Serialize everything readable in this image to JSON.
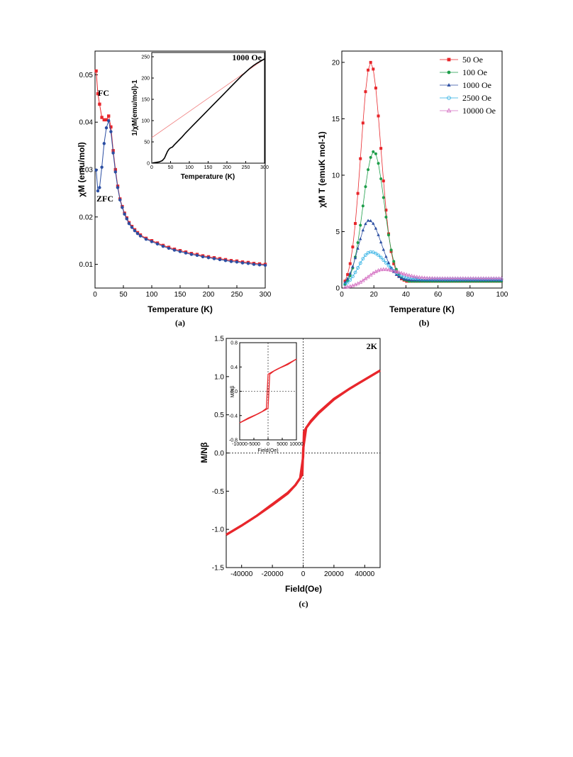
{
  "chart_data": [
    {
      "id": "a",
      "type": "line",
      "panel_label": "(a)",
      "xlabel": "Temperature (K)",
      "ylabel": "χM (emu/mol)",
      "xlim": [
        0,
        300
      ],
      "ylim": [
        0.005,
        0.055
      ],
      "xticks": [
        0,
        50,
        100,
        150,
        200,
        250,
        300
      ],
      "yticks": [
        0.01,
        0.02,
        0.03,
        0.04,
        0.05
      ],
      "ytick_labels": [
        "0.01",
        "0.02",
        "0.03",
        "0.04",
        "0.05"
      ],
      "annotations": [
        "FC",
        "ZFC"
      ],
      "series": [
        {
          "name": "FC",
          "color": "#e8262b",
          "marker": "square",
          "points": [
            [
              2,
              0.0508
            ],
            [
              5,
              0.046
            ],
            [
              8,
              0.0438
            ],
            [
              12,
              0.041
            ],
            [
              16,
              0.0405
            ],
            [
              20,
              0.0405
            ],
            [
              24,
              0.0413
            ],
            [
              28,
              0.039
            ],
            [
              32,
              0.034
            ],
            [
              36,
              0.03
            ],
            [
              40,
              0.0265
            ],
            [
              44,
              0.0238
            ],
            [
              48,
              0.0222
            ],
            [
              52,
              0.0208
            ],
            [
              56,
              0.0198
            ],
            [
              60,
              0.0188
            ],
            [
              65,
              0.018
            ],
            [
              70,
              0.0173
            ],
            [
              75,
              0.0167
            ],
            [
              80,
              0.0162
            ],
            [
              90,
              0.0155
            ],
            [
              100,
              0.015
            ],
            [
              110,
              0.0145
            ],
            [
              120,
              0.014
            ],
            [
              130,
              0.0136
            ],
            [
              140,
              0.0132
            ],
            [
              150,
              0.0129
            ],
            [
              160,
              0.0126
            ],
            [
              170,
              0.0123
            ],
            [
              180,
              0.0121
            ],
            [
              190,
              0.0118
            ],
            [
              200,
              0.0116
            ],
            [
              210,
              0.0114
            ],
            [
              220,
              0.0112
            ],
            [
              230,
              0.011
            ],
            [
              240,
              0.0108
            ],
            [
              250,
              0.0107
            ],
            [
              260,
              0.0105
            ],
            [
              270,
              0.0104
            ],
            [
              280,
              0.0102
            ],
            [
              290,
              0.0101
            ],
            [
              300,
              0.01
            ]
          ]
        },
        {
          "name": "ZFC",
          "color": "#2b4ea2",
          "marker": "circle",
          "points": [
            [
              2,
              0.0299
            ],
            [
              5,
              0.0255
            ],
            [
              8,
              0.0262
            ],
            [
              12,
              0.0305
            ],
            [
              16,
              0.0355
            ],
            [
              20,
              0.0388
            ],
            [
              24,
              0.0403
            ],
            [
              28,
              0.038
            ],
            [
              32,
              0.0335
            ],
            [
              36,
              0.0295
            ],
            [
              40,
              0.0262
            ],
            [
              44,
              0.0236
            ],
            [
              48,
              0.022
            ],
            [
              52,
              0.0206
            ],
            [
              56,
              0.0196
            ],
            [
              60,
              0.0186
            ],
            [
              65,
              0.0178
            ],
            [
              70,
              0.0171
            ],
            [
              75,
              0.0165
            ],
            [
              80,
              0.016
            ],
            [
              90,
              0.0153
            ],
            [
              100,
              0.0148
            ],
            [
              110,
              0.0143
            ],
            [
              120,
              0.0138
            ],
            [
              130,
              0.0134
            ],
            [
              140,
              0.013
            ],
            [
              150,
              0.0127
            ],
            [
              160,
              0.0124
            ],
            [
              170,
              0.0121
            ],
            [
              180,
              0.0119
            ],
            [
              190,
              0.0116
            ],
            [
              200,
              0.0114
            ],
            [
              210,
              0.0112
            ],
            [
              220,
              0.011
            ],
            [
              230,
              0.0108
            ],
            [
              240,
              0.0106
            ],
            [
              250,
              0.0105
            ],
            [
              260,
              0.0103
            ],
            [
              270,
              0.0102
            ],
            [
              280,
              0.01
            ],
            [
              290,
              0.0099
            ],
            [
              300,
              0.0098
            ]
          ]
        }
      ]
    },
    {
      "id": "a_inset",
      "type": "line",
      "xlabel": "Temperature (K)",
      "ylabel": "1/χM(emu/mol)-1",
      "annotation": "1000 Oe",
      "xlim": [
        0,
        300
      ],
      "ylim": [
        0,
        260
      ],
      "xticks": [
        0,
        50,
        100,
        150,
        200,
        250,
        300
      ],
      "yticks": [
        0,
        50,
        100,
        150,
        200,
        250
      ],
      "series": [
        {
          "name": "data",
          "color": "#000000",
          "points": [
            [
              2,
              0.5
            ],
            [
              10,
              1.5
            ],
            [
              20,
              3
            ],
            [
              28,
              6
            ],
            [
              34,
              12
            ],
            [
              38,
              20
            ],
            [
              42,
              28
            ],
            [
              46,
              33
            ],
            [
              50,
              36
            ],
            [
              55,
              38
            ],
            [
              60,
              43
            ],
            [
              70,
              52
            ],
            [
              80,
              61
            ],
            [
              90,
              71
            ],
            [
              100,
              80
            ],
            [
              110,
              89
            ],
            [
              120,
              98
            ],
            [
              130,
              107
            ],
            [
              140,
              116
            ],
            [
              150,
              125
            ],
            [
              160,
              134
            ],
            [
              170,
              143
            ],
            [
              180,
              152
            ],
            [
              190,
              161
            ],
            [
              200,
              170
            ],
            [
              210,
              179
            ],
            [
              220,
              188
            ],
            [
              230,
              197
            ],
            [
              240,
              206
            ],
            [
              250,
              214
            ],
            [
              260,
              222
            ],
            [
              270,
              229
            ],
            [
              280,
              235
            ],
            [
              290,
              240
            ],
            [
              300,
              245
            ]
          ]
        },
        {
          "name": "fit",
          "color": "#f08080",
          "points": [
            [
              0,
              60
            ],
            [
              300,
              245
            ]
          ]
        }
      ]
    },
    {
      "id": "b",
      "type": "line",
      "panel_label": "(b)",
      "xlabel": "Temperature (K)",
      "ylabel": "χM T (emuK mol-1)",
      "xlim": [
        0,
        100
      ],
      "ylim": [
        0,
        21
      ],
      "xticks": [
        0,
        20,
        40,
        60,
        80,
        100
      ],
      "yticks": [
        0,
        5,
        10,
        15,
        20
      ],
      "series": [
        {
          "name": "50 Oe",
          "color": "#e8262b",
          "marker": "square",
          "peak_t": 18,
          "peak": 20.0,
          "w_low": 9,
          "w_high": 9.5,
          "base": 0.6
        },
        {
          "name": "100 Oe",
          "color": "#1e9e4a",
          "marker": "circle",
          "peak_t": 20,
          "peak": 12.1,
          "w_low": 10,
          "w_high": 9.5,
          "base": 0.6
        },
        {
          "name": "1000 Oe",
          "color": "#2b4ea2",
          "marker": "triangle",
          "peak_t": 17,
          "peak": 6.0,
          "w_low": 10,
          "w_high": 11.5,
          "base": 0.7
        },
        {
          "name": "2500 Oe",
          "color": "#29aee3",
          "marker": "circle-open",
          "peak_t": 18,
          "peak": 3.2,
          "w_low": 11,
          "w_high": 14,
          "base": 0.8
        },
        {
          "name": "10000 Oe",
          "color": "#d36bc0",
          "marker": "triangle-open",
          "peak_t": 26,
          "peak": 1.65,
          "w_low": 14,
          "w_high": 16,
          "base": 0.85
        }
      ]
    },
    {
      "id": "c",
      "type": "line",
      "panel_label": "(c)",
      "annotation": "2K",
      "xlabel": "Field(Oe)",
      "ylabel": "M/Nβ",
      "xlim": [
        -50000,
        50000
      ],
      "ylim": [
        -1.5,
        1.5
      ],
      "xticks": [
        -40000,
        -20000,
        0,
        20000,
        40000
      ],
      "yticks": [
        -1.5,
        -1.0,
        -0.5,
        0.0,
        0.5,
        1.0,
        1.5
      ],
      "ytick_labels": [
        "-1.5",
        "-1.0",
        "-0.5",
        "0.0",
        "0.5",
        "1.0",
        "1.5"
      ],
      "series": [
        {
          "name": "upper",
          "color": "#e8262b",
          "points": [
            [
              -50000,
              -1.07
            ],
            [
              -40000,
              -0.95
            ],
            [
              -30000,
              -0.82
            ],
            [
              -20000,
              -0.67
            ],
            [
              -10000,
              -0.52
            ],
            [
              -5000,
              -0.42
            ],
            [
              -2000,
              -0.33
            ],
            [
              0,
              -0.05
            ],
            [
              500,
              0.28
            ],
            [
              2000,
              0.33
            ],
            [
              5000,
              0.42
            ],
            [
              10000,
              0.53
            ],
            [
              20000,
              0.71
            ],
            [
              30000,
              0.84
            ],
            [
              40000,
              0.96
            ],
            [
              50000,
              1.08
            ]
          ]
        },
        {
          "name": "lower",
          "color": "#e8262b",
          "points": [
            [
              -50000,
              -1.07
            ],
            [
              -40000,
              -0.95
            ],
            [
              -30000,
              -0.82
            ],
            [
              -20000,
              -0.68
            ],
            [
              -10000,
              -0.53
            ],
            [
              -5000,
              -0.42
            ],
            [
              -2000,
              -0.33
            ],
            [
              -500,
              -0.28
            ],
            [
              0,
              0.05
            ],
            [
              2000,
              0.33
            ],
            [
              5000,
              0.41
            ],
            [
              10000,
              0.52
            ],
            [
              20000,
              0.7
            ],
            [
              30000,
              0.84
            ],
            [
              40000,
              0.96
            ],
            [
              50000,
              1.08
            ]
          ]
        }
      ]
    },
    {
      "id": "c_inset",
      "type": "line",
      "xlabel": "Field(Oe)",
      "ylabel": "M/Nβ",
      "xlim": [
        -10000,
        10000
      ],
      "ylim": [
        -0.8,
        0.8
      ],
      "xticks": [
        -10000,
        -5000,
        0,
        5000,
        10000
      ],
      "yticks": [
        -0.8,
        -0.4,
        0.0,
        0.4,
        0.8
      ],
      "ytick_labels": [
        "-0.8",
        "-0.4",
        "0.0",
        "0.4",
        "0.8"
      ],
      "series": [
        {
          "name": "upper",
          "color": "#e8262b",
          "points": [
            [
              -10000,
              -0.52
            ],
            [
              -7000,
              -0.44
            ],
            [
              -4000,
              -0.38
            ],
            [
              -2000,
              -0.33
            ],
            [
              -600,
              -0.28
            ],
            [
              -300,
              0.0
            ],
            [
              0,
              0.28
            ],
            [
              1000,
              0.31
            ],
            [
              3000,
              0.36
            ],
            [
              6000,
              0.43
            ],
            [
              10000,
              0.53
            ]
          ]
        },
        {
          "name": "lower",
          "color": "#e8262b",
          "points": [
            [
              -10000,
              -0.52
            ],
            [
              -6000,
              -0.43
            ],
            [
              -3000,
              -0.36
            ],
            [
              -1000,
              -0.31
            ],
            [
              0,
              -0.28
            ],
            [
              300,
              0.0
            ],
            [
              600,
              0.28
            ],
            [
              2000,
              0.33
            ],
            [
              4000,
              0.38
            ],
            [
              7000,
              0.44
            ],
            [
              10000,
              0.53
            ]
          ]
        }
      ]
    }
  ]
}
